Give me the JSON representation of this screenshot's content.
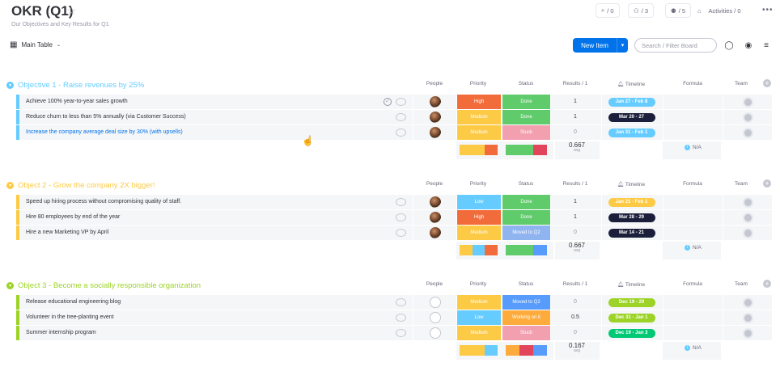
{
  "board": {
    "title": "OKR (Q1)",
    "subtitle": "Our Objectives and Key Results for Q1",
    "view_tab": "Main Table",
    "new_item": "New Item",
    "search_placeholder": "Search / Filter Board",
    "header_buttons": [
      {
        "icon": "inbox-icon",
        "label": "/ 0"
      },
      {
        "icon": "integrations-icon",
        "label": "/ 3"
      },
      {
        "icon": "members-icon",
        "label": "/ 5"
      },
      {
        "icon": "activity-icon",
        "label": "Activities / 0"
      }
    ]
  },
  "columns": {
    "people": "People",
    "priority": "Priority",
    "status": "Status",
    "results": "Results / 1",
    "timeline": "Timeline",
    "formula": "Formula",
    "team": "Team"
  },
  "groups": [
    {
      "title": "Objective 1 - Raise revenues by 25%",
      "color": "#66ccff",
      "rows": [
        {
          "name": "Achieve 100% year-to-year sales growth",
          "person": true,
          "priority": "High",
          "priority_color": "#f26b3a",
          "status": "Done",
          "status_color": "#5fcb6a",
          "result": "1",
          "timeline": "Jan 27 - Feb 8",
          "timeline_color": "#66ccff"
        },
        {
          "name": "Reduce churn to less than 5% annually (via Customer Success)",
          "person": true,
          "priority": "Medium",
          "priority_color": "#fdca45",
          "status": "Done",
          "status_color": "#5fcb6a",
          "result": "1",
          "timeline": "Mar 20 - 27",
          "timeline_color": "#1c1f3b"
        },
        {
          "name": "Increase the company average deal size by 30% (with upsells)",
          "link": true,
          "person": true,
          "priority": "Medium",
          "priority_color": "#fdca45",
          "status": "Stuck",
          "status_color": "#f2a0b0",
          "result": "0",
          "timeline": "Jan 31 - Feb 1",
          "timeline_color": "#66ccff"
        }
      ],
      "summary": {
        "avg": "0.667",
        "avg_label": "avg",
        "formula": "N/A",
        "priority_mix": [
          {
            "color": "#fdca45",
            "w": 2
          },
          {
            "color": "#f26b3a",
            "w": 1
          }
        ],
        "status_mix": [
          {
            "color": "#5fcb6a",
            "w": 2
          },
          {
            "color": "#e2445c",
            "w": 1
          }
        ]
      }
    },
    {
      "title": "Object 2 - Grow the company 2X bigger!",
      "color": "#fdca45",
      "rows": [
        {
          "name": "Speed up hiring process without compromising quality of staff.",
          "person": true,
          "priority": "Low",
          "priority_color": "#66ccff",
          "status": "Done",
          "status_color": "#5fcb6a",
          "result": "1",
          "timeline": "Jan 21 - Feb 1",
          "timeline_color": "#fdca45"
        },
        {
          "name": "Hire 80 employees by end of the year",
          "person": true,
          "priority": "High",
          "priority_color": "#f26b3a",
          "status": "Done",
          "status_color": "#5fcb6a",
          "result": "1",
          "timeline": "Mar 28 - 29",
          "timeline_color": "#1c1f3b"
        },
        {
          "name": "Hire a new Marketing VP by April",
          "person": true,
          "priority": "Medium",
          "priority_color": "#fdca45",
          "status": "Moved to Q2",
          "status_color": "#8fb4f0",
          "result": "0",
          "timeline": "Mar 14 - 21",
          "timeline_color": "#1c1f3b"
        }
      ],
      "summary": {
        "avg": "0.667",
        "avg_label": "avg",
        "formula": "N/A",
        "priority_mix": [
          {
            "color": "#fdca45",
            "w": 1
          },
          {
            "color": "#66ccff",
            "w": 1
          },
          {
            "color": "#f26b3a",
            "w": 1
          }
        ],
        "status_mix": [
          {
            "color": "#5fcb6a",
            "w": 2
          },
          {
            "color": "#579bfc",
            "w": 1
          }
        ]
      }
    },
    {
      "title": "Object 3 - Become a socially responsible organization",
      "color": "#9cd326",
      "rows": [
        {
          "name": "Release educational engineering blog",
          "person": false,
          "priority": "Medium",
          "priority_color": "#fdca45",
          "status": "Moved to Q2",
          "status_color": "#579bfc",
          "result": "0",
          "timeline": "Dec 19 - 29",
          "timeline_color": "#9cd326"
        },
        {
          "name": "Volunteer in the tree-planting event",
          "person": false,
          "priority": "Low",
          "priority_color": "#66ccff",
          "status": "Working on it",
          "status_color": "#fdab3d",
          "result": "0.5",
          "timeline": "Dec 31 - Jan 1",
          "timeline_color": "#9cd326"
        },
        {
          "name": "Summer internship program",
          "person": false,
          "priority": "Medium",
          "priority_color": "#fdca45",
          "status": "Stuck",
          "status_color": "#f2a0b0",
          "result": "0",
          "timeline": "Dec 19 - Jan 3",
          "timeline_color": "#00c875"
        }
      ],
      "summary": {
        "avg": "0.167",
        "avg_label": "avg",
        "formula": "N/A",
        "priority_mix": [
          {
            "color": "#fdca45",
            "w": 2
          },
          {
            "color": "#66ccff",
            "w": 1
          }
        ],
        "status_mix": [
          {
            "color": "#fdab3d",
            "w": 1
          },
          {
            "color": "#e2445c",
            "w": 1
          },
          {
            "color": "#579bfc",
            "w": 1
          }
        ]
      }
    }
  ]
}
